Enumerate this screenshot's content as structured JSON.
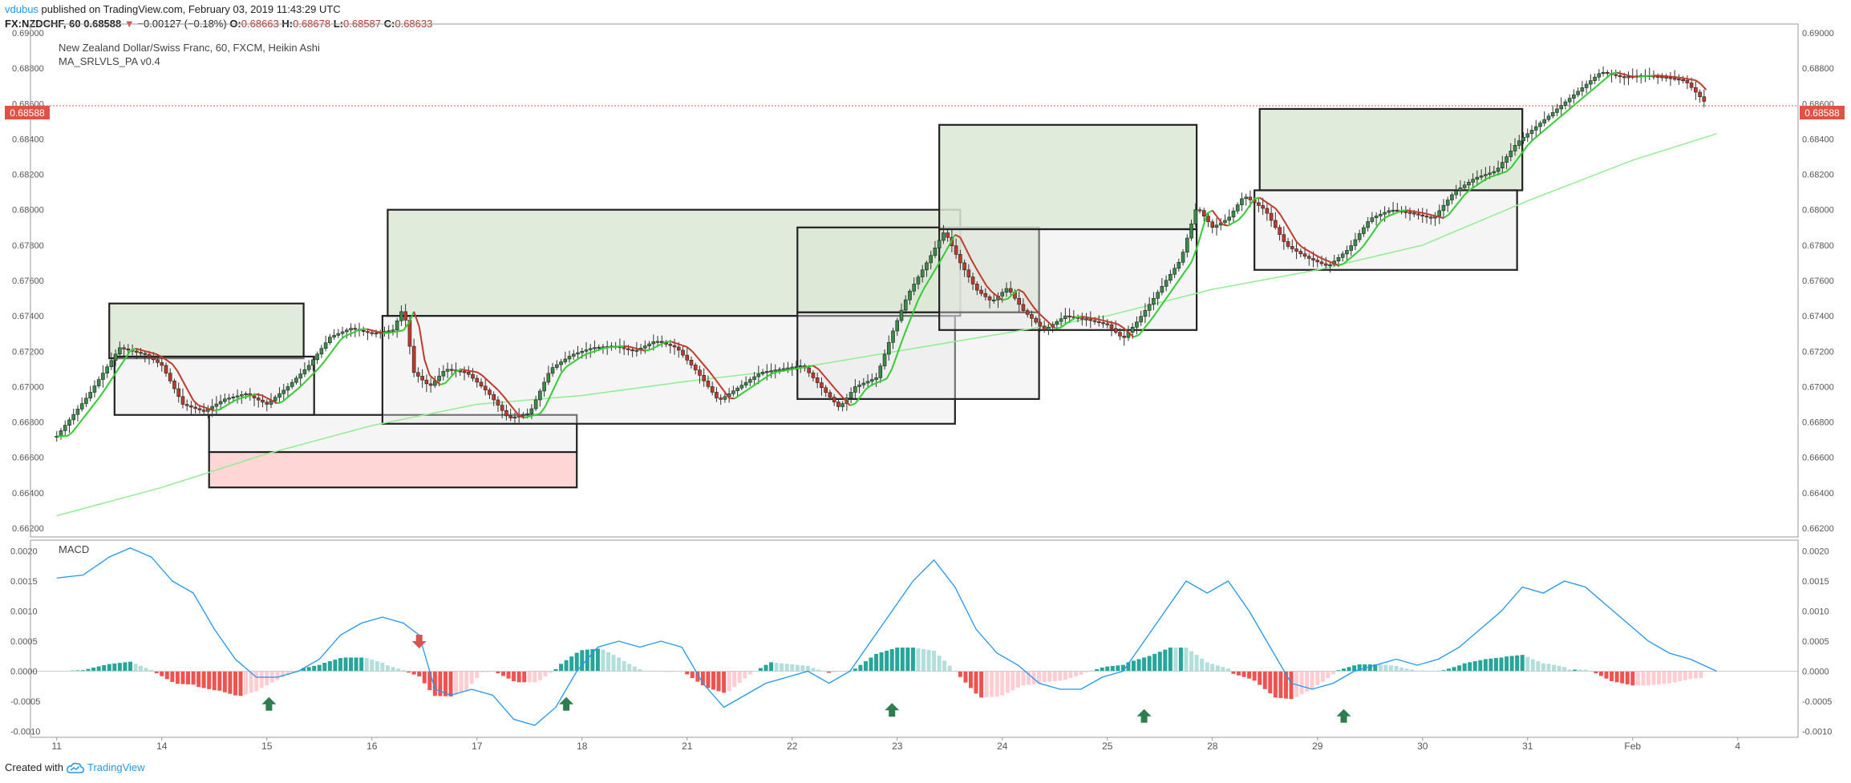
{
  "header": {
    "author": "vdubus",
    "published_text": "published on TradingView.com, February 03, 2019 11:43:29 UTC",
    "symbol_line": "FX:NZDCHF, 60",
    "last": "0.68588",
    "change": "−0.00127 (−0.18%)",
    "open_label": "O:",
    "open": "0.68663",
    "high_label": "H:",
    "high": "0.68678",
    "low_label": "L:",
    "low": "0.68587",
    "close_label": "C:",
    "close": "0.68633"
  },
  "legend": {
    "title": "New Zealand Dollar/Swiss Franc, 60, FXCM, Heikin Ashi",
    "indicator": "MA_SRLVLS_PA v0.4",
    "macd": "MACD"
  },
  "price_badge": "0.68588",
  "footer": {
    "created": "Created with",
    "brand": "TradingView"
  },
  "colors": {
    "up": "#3a8a48",
    "down": "#c0392b",
    "ma_fast_up": "#33cc33",
    "ma_slow": "#90ee90",
    "macd_line": "#2196f3",
    "hist_pos": "#26a69a",
    "hist_neg": "#ef5350",
    "resistance_zone": "#dce7d6",
    "support_zone": "#ffd1d1"
  },
  "chart_data": [
    {
      "type": "candlestick",
      "title": "New Zealand Dollar/Swiss Franc, 60, FXCM, Heikin Ashi",
      "price_axis_ticks": [
        "0.69000",
        "0.68800",
        "0.68600",
        "0.68400",
        "0.68200",
        "0.68000",
        "0.67800",
        "0.67600",
        "0.67400",
        "0.67200",
        "0.67000",
        "0.66800",
        "0.66600",
        "0.66400",
        "0.66200"
      ],
      "ylim": [
        0.6615,
        0.6905
      ],
      "x_ticks": [
        {
          "label": "11",
          "d": 0
        },
        {
          "label": "14",
          "d": 1
        },
        {
          "label": "15",
          "d": 2
        },
        {
          "label": "16",
          "d": 3
        },
        {
          "label": "17",
          "d": 4
        },
        {
          "label": "18",
          "d": 5
        },
        {
          "label": "21",
          "d": 6
        },
        {
          "label": "22",
          "d": 7
        },
        {
          "label": "23",
          "d": 8
        },
        {
          "label": "24",
          "d": 9
        },
        {
          "label": "25",
          "d": 10
        },
        {
          "label": "28",
          "d": 11
        },
        {
          "label": "29",
          "d": 12
        },
        {
          "label": "30",
          "d": 13
        },
        {
          "label": "31",
          "d": 14
        },
        {
          "label": "Feb",
          "d": 15
        },
        {
          "label": "4",
          "d": 16
        }
      ],
      "close_path": [
        [
          0.0,
          0.6672
        ],
        [
          0.3,
          0.6695
        ],
        [
          0.6,
          0.6722
        ],
        [
          0.85,
          0.6718
        ],
        [
          1.0,
          0.6712
        ],
        [
          1.2,
          0.669
        ],
        [
          1.4,
          0.6686
        ],
        [
          1.6,
          0.6693
        ],
        [
          1.8,
          0.6696
        ],
        [
          2.0,
          0.669
        ],
        [
          2.2,
          0.67
        ],
        [
          2.4,
          0.6712
        ],
        [
          2.6,
          0.6728
        ],
        [
          2.8,
          0.6733
        ],
        [
          3.0,
          0.673
        ],
        [
          3.2,
          0.6732
        ],
        [
          3.3,
          0.6745
        ],
        [
          3.4,
          0.6708
        ],
        [
          3.55,
          0.67
        ],
        [
          3.7,
          0.671
        ],
        [
          3.9,
          0.6708
        ],
        [
          4.1,
          0.6697
        ],
        [
          4.3,
          0.6682
        ],
        [
          4.5,
          0.6685
        ],
        [
          4.7,
          0.671
        ],
        [
          4.9,
          0.6718
        ],
        [
          5.1,
          0.6722
        ],
        [
          5.3,
          0.6723
        ],
        [
          5.5,
          0.672
        ],
        [
          5.7,
          0.6726
        ],
        [
          5.9,
          0.6722
        ],
        [
          6.1,
          0.6708
        ],
        [
          6.3,
          0.6692
        ],
        [
          6.5,
          0.67
        ],
        [
          6.7,
          0.6708
        ],
        [
          6.9,
          0.671
        ],
        [
          7.1,
          0.6712
        ],
        [
          7.3,
          0.6698
        ],
        [
          7.45,
          0.6688
        ],
        [
          7.6,
          0.67
        ],
        [
          7.8,
          0.6705
        ],
        [
          7.95,
          0.673
        ],
        [
          8.1,
          0.6752
        ],
        [
          8.3,
          0.6772
        ],
        [
          8.45,
          0.6788
        ],
        [
          8.6,
          0.677
        ],
        [
          8.75,
          0.6755
        ],
        [
          8.9,
          0.6748
        ],
        [
          9.05,
          0.6756
        ],
        [
          9.2,
          0.6743
        ],
        [
          9.4,
          0.6732
        ],
        [
          9.6,
          0.674
        ],
        [
          9.8,
          0.6738
        ],
        [
          10.0,
          0.6735
        ],
        [
          10.15,
          0.6727
        ],
        [
          10.3,
          0.6738
        ],
        [
          10.5,
          0.6755
        ],
        [
          10.7,
          0.6772
        ],
        [
          10.85,
          0.6802
        ],
        [
          11.0,
          0.679
        ],
        [
          11.15,
          0.6795
        ],
        [
          11.3,
          0.6808
        ],
        [
          11.5,
          0.68
        ],
        [
          11.7,
          0.678
        ],
        [
          11.9,
          0.6773
        ],
        [
          12.1,
          0.6768
        ],
        [
          12.3,
          0.6778
        ],
        [
          12.5,
          0.6795
        ],
        [
          12.7,
          0.68
        ],
        [
          12.9,
          0.6798
        ],
        [
          13.1,
          0.6795
        ],
        [
          13.3,
          0.681
        ],
        [
          13.5,
          0.6818
        ],
        [
          13.7,
          0.6822
        ],
        [
          13.9,
          0.6838
        ],
        [
          14.1,
          0.6848
        ],
        [
          14.3,
          0.6858
        ],
        [
          14.5,
          0.6868
        ],
        [
          14.7,
          0.6878
        ],
        [
          14.9,
          0.6875
        ],
        [
          15.1,
          0.6876
        ],
        [
          15.3,
          0.6875
        ],
        [
          15.5,
          0.6873
        ],
        [
          15.7,
          0.686
        ]
      ],
      "slow_ma": [
        [
          0.0,
          0.6627
        ],
        [
          1.0,
          0.6643
        ],
        [
          2.0,
          0.6662
        ],
        [
          3.0,
          0.6678
        ],
        [
          4.0,
          0.669
        ],
        [
          5.0,
          0.6695
        ],
        [
          6.0,
          0.6703
        ],
        [
          7.0,
          0.671
        ],
        [
          8.0,
          0.672
        ],
        [
          9.0,
          0.673
        ],
        [
          10.0,
          0.674
        ],
        [
          11.0,
          0.6755
        ],
        [
          12.0,
          0.6766
        ],
        [
          13.0,
          0.678
        ],
        [
          14.0,
          0.6805
        ],
        [
          15.0,
          0.6828
        ],
        [
          15.8,
          0.6843
        ]
      ],
      "zones": [
        {
          "type": "resistance",
          "d0": 0.5,
          "d1": 2.35,
          "p0": 0.6716,
          "p1": 0.6747
        },
        {
          "type": "neutral",
          "d0": 0.55,
          "d1": 2.45,
          "p0": 0.6684,
          "p1": 0.6717
        },
        {
          "type": "neutral",
          "d0": 1.45,
          "d1": 4.95,
          "p0": 0.6663,
          "p1": 0.6684
        },
        {
          "type": "support",
          "d0": 1.45,
          "d1": 4.95,
          "p0": 0.6643,
          "p1": 0.6663
        },
        {
          "type": "resistance",
          "d0": 3.15,
          "d1": 8.6,
          "p0": 0.674,
          "p1": 0.68
        },
        {
          "type": "neutral",
          "d0": 3.1,
          "d1": 8.55,
          "p0": 0.6679,
          "p1": 0.674
        },
        {
          "type": "resistance",
          "d0": 7.05,
          "d1": 9.35,
          "p0": 0.6742,
          "p1": 0.679
        },
        {
          "type": "neutral",
          "d0": 7.05,
          "d1": 9.35,
          "p0": 0.6693,
          "p1": 0.6742
        },
        {
          "type": "resistance",
          "d0": 8.4,
          "d1": 10.85,
          "p0": 0.6789,
          "p1": 0.6848
        },
        {
          "type": "neutral",
          "d0": 8.4,
          "d1": 10.85,
          "p0": 0.6732,
          "p1": 0.6789
        },
        {
          "type": "resistance",
          "d0": 11.45,
          "d1": 13.95,
          "p0": 0.6811,
          "p1": 0.6857
        },
        {
          "type": "neutral",
          "d0": 11.4,
          "d1": 13.9,
          "p0": 0.6766,
          "p1": 0.6811
        }
      ],
      "current_price": 0.68588
    },
    {
      "type": "line",
      "title": "MACD",
      "y_ticks": [
        "0.0020",
        "0.0015",
        "0.0010",
        "0.0005",
        "0.0000",
        "-0.0005",
        "-0.0010"
      ],
      "ylim": [
        -0.0011,
        0.0021
      ],
      "series": [
        {
          "values": [
            [
              0.0,
              0.00155
            ],
            [
              0.25,
              0.0016
            ],
            [
              0.5,
              0.0019
            ],
            [
              0.7,
              0.00205
            ],
            [
              0.9,
              0.0019
            ],
            [
              1.1,
              0.0015
            ],
            [
              1.3,
              0.0013
            ],
            [
              1.5,
              0.0007
            ],
            [
              1.7,
              0.0002
            ],
            [
              1.9,
              -0.0001
            ],
            [
              2.1,
              -0.0001
            ],
            [
              2.3,
              0.0
            ],
            [
              2.5,
              0.0002
            ],
            [
              2.7,
              0.0006
            ],
            [
              2.9,
              0.0008
            ],
            [
              3.1,
              0.0009
            ],
            [
              3.3,
              0.0008
            ],
            [
              3.45,
              0.0006
            ],
            [
              3.6,
              -0.0003
            ],
            [
              3.75,
              -0.0004
            ],
            [
              3.95,
              -0.0003
            ],
            [
              4.15,
              -0.0004
            ],
            [
              4.35,
              -0.0008
            ],
            [
              4.55,
              -0.0009
            ],
            [
              4.75,
              -0.0006
            ],
            [
              4.95,
              0.0
            ],
            [
              5.15,
              0.0004
            ],
            [
              5.35,
              0.0005
            ],
            [
              5.55,
              0.0004
            ],
            [
              5.75,
              0.0005
            ],
            [
              5.95,
              0.0004
            ],
            [
              6.15,
              -0.0002
            ],
            [
              6.35,
              -0.0006
            ],
            [
              6.55,
              -0.0004
            ],
            [
              6.75,
              -0.0002
            ],
            [
              6.95,
              -0.0001
            ],
            [
              7.15,
              0.0
            ],
            [
              7.35,
              -0.0002
            ],
            [
              7.55,
              0.0
            ],
            [
              7.75,
              0.0005
            ],
            [
              7.95,
              0.001
            ],
            [
              8.15,
              0.0015
            ],
            [
              8.35,
              0.00185
            ],
            [
              8.55,
              0.0014
            ],
            [
              8.75,
              0.0007
            ],
            [
              8.95,
              0.0003
            ],
            [
              9.15,
              0.0001
            ],
            [
              9.35,
              -0.0002
            ],
            [
              9.55,
              -0.0003
            ],
            [
              9.75,
              -0.0003
            ],
            [
              9.95,
              -0.0001
            ],
            [
              10.15,
              0.0
            ],
            [
              10.35,
              0.0005
            ],
            [
              10.55,
              0.001
            ],
            [
              10.75,
              0.0015
            ],
            [
              10.95,
              0.0013
            ],
            [
              11.15,
              0.0015
            ],
            [
              11.35,
              0.001
            ],
            [
              11.55,
              0.0004
            ],
            [
              11.75,
              -0.0002
            ],
            [
              11.95,
              -0.0003
            ],
            [
              12.15,
              -0.0002
            ],
            [
              12.35,
              0.0
            ],
            [
              12.55,
              0.0001
            ],
            [
              12.75,
              0.0002
            ],
            [
              12.95,
              0.0001
            ],
            [
              13.15,
              0.0002
            ],
            [
              13.35,
              0.0004
            ],
            [
              13.55,
              0.0007
            ],
            [
              13.75,
              0.001
            ],
            [
              13.95,
              0.0014
            ],
            [
              14.15,
              0.0013
            ],
            [
              14.35,
              0.0015
            ],
            [
              14.55,
              0.0014
            ],
            [
              14.75,
              0.0011
            ],
            [
              14.95,
              0.0008
            ],
            [
              15.15,
              0.0005
            ],
            [
              15.35,
              0.0003
            ],
            [
              15.55,
              0.0002
            ],
            [
              15.8,
              0.0
            ]
          ]
        }
      ],
      "annotations": [
        {
          "type": "arrow-down",
          "d": 3.45,
          "y": 0.0005
        },
        {
          "type": "arrow-up",
          "d": 2.02,
          "y": -0.00055
        },
        {
          "type": "arrow-up",
          "d": 4.85,
          "y": -0.00055
        },
        {
          "type": "arrow-up",
          "d": 7.95,
          "y": -0.00065
        },
        {
          "type": "arrow-up",
          "d": 10.35,
          "y": -0.00075
        },
        {
          "type": "arrow-up",
          "d": 12.25,
          "y": -0.00075
        }
      ]
    }
  ]
}
